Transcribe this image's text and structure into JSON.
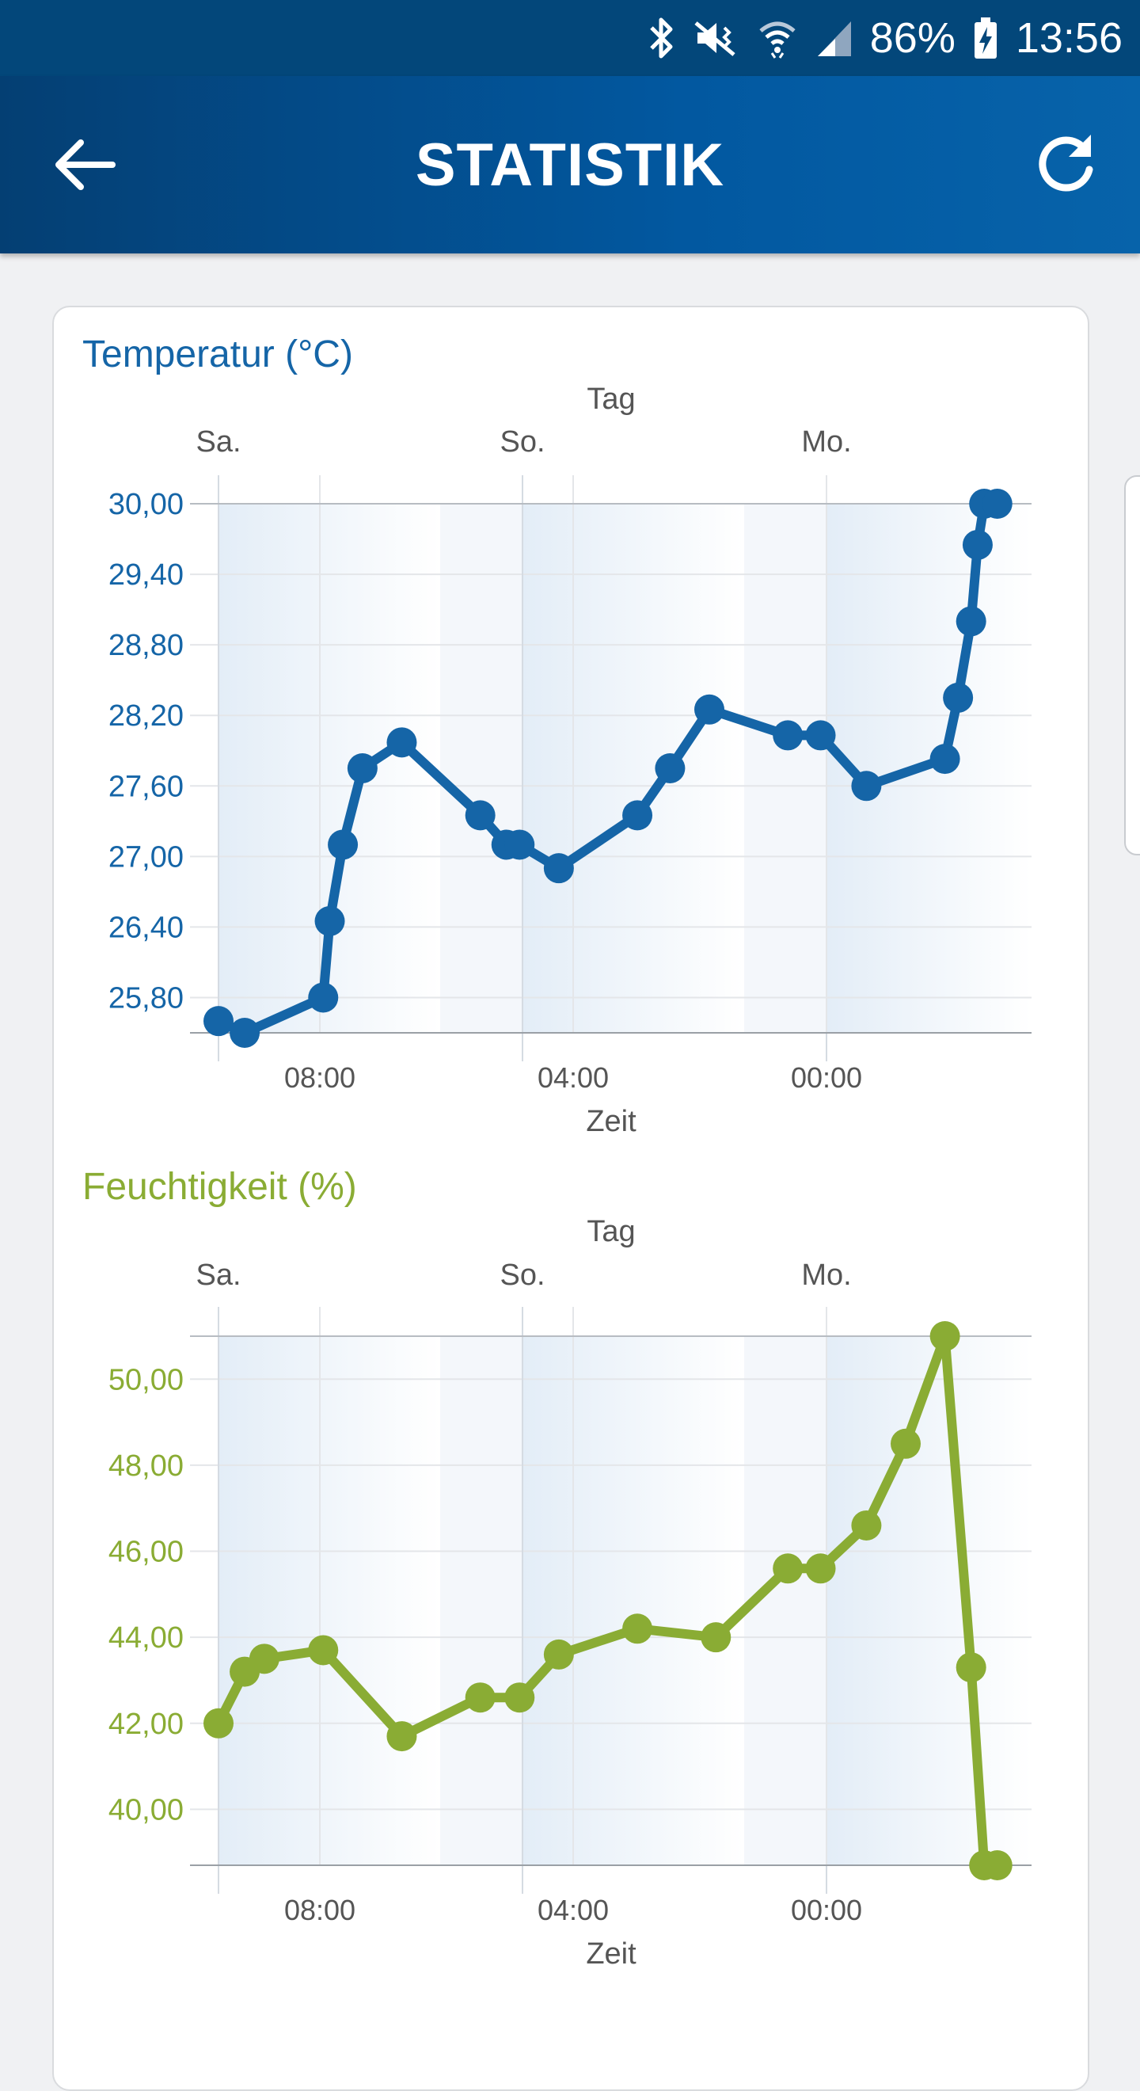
{
  "status": {
    "battery": "86%",
    "time": "13:56"
  },
  "appbar": {
    "title": "STATISTIK"
  },
  "colors": {
    "temperature": "#1565a7",
    "humidity": "#8aac34",
    "appbar": "#03477a"
  },
  "icons": [
    "bluetooth-icon",
    "mute-vibrate-icon",
    "wifi-icon",
    "signal-icon",
    "battery-charging-icon",
    "back-arrow-icon",
    "refresh-icon"
  ],
  "chart_data": [
    {
      "type": "line",
      "title": "Temperatur (°C)",
      "top_axis_label": "Tag",
      "xlabel": "Zeit",
      "day_labels": [
        "Sa.",
        "So.",
        "Mo."
      ],
      "time_ticks": [
        "08:00",
        "04:00",
        "00:00"
      ],
      "ylim": [
        25.5,
        30.0
      ],
      "yticks": [
        "25,80",
        "26,40",
        "27,00",
        "27,60",
        "28,20",
        "28,80",
        "29,40",
        "30,00"
      ],
      "ytick_values": [
        25.8,
        26.4,
        27.0,
        27.6,
        28.2,
        28.8,
        29.4,
        30.0
      ],
      "xlim": [
        0,
        60
      ],
      "color": "#1565a7",
      "series": [
        {
          "x": [
            0,
            2,
            8,
            8.5,
            9.5,
            11,
            14,
            20,
            22,
            23,
            26,
            32,
            34.5,
            37.5,
            43.5,
            46,
            49.5,
            55.5,
            56.5,
            57.5,
            58,
            58.5,
            59.5
          ],
          "y": [
            25.6,
            25.5,
            25.8,
            26.45,
            27.1,
            27.75,
            27.97,
            27.35,
            27.1,
            27.1,
            26.9,
            27.35,
            27.75,
            28.25,
            28.03,
            28.03,
            27.6,
            27.83,
            28.35,
            29.0,
            29.65,
            30.0,
            30.0
          ]
        }
      ]
    },
    {
      "type": "line",
      "title": "Feuchtigkeit (%)",
      "top_axis_label": "Tag",
      "xlabel": "Zeit",
      "day_labels": [
        "Sa.",
        "So.",
        "Mo."
      ],
      "time_ticks": [
        "08:00",
        "04:00",
        "00:00"
      ],
      "ylim": [
        38.7,
        51.0
      ],
      "yticks": [
        "40,00",
        "42,00",
        "44,00",
        "46,00",
        "48,00",
        "50,00"
      ],
      "ytick_values": [
        40.0,
        42.0,
        44.0,
        46.0,
        48.0,
        50.0
      ],
      "xlim": [
        0,
        60
      ],
      "color": "#8aac34",
      "series": [
        {
          "x": [
            0,
            2,
            3.5,
            8,
            14,
            20,
            23,
            26,
            32,
            38,
            43.5,
            46,
            49.5,
            52.5,
            55.5,
            57.5,
            58.5,
            59.5
          ],
          "y": [
            42.0,
            43.2,
            43.5,
            43.7,
            41.7,
            42.6,
            42.6,
            43.6,
            44.2,
            44.0,
            45.6,
            45.6,
            46.6,
            48.5,
            51.0,
            43.3,
            38.7,
            38.7
          ]
        }
      ]
    }
  ]
}
